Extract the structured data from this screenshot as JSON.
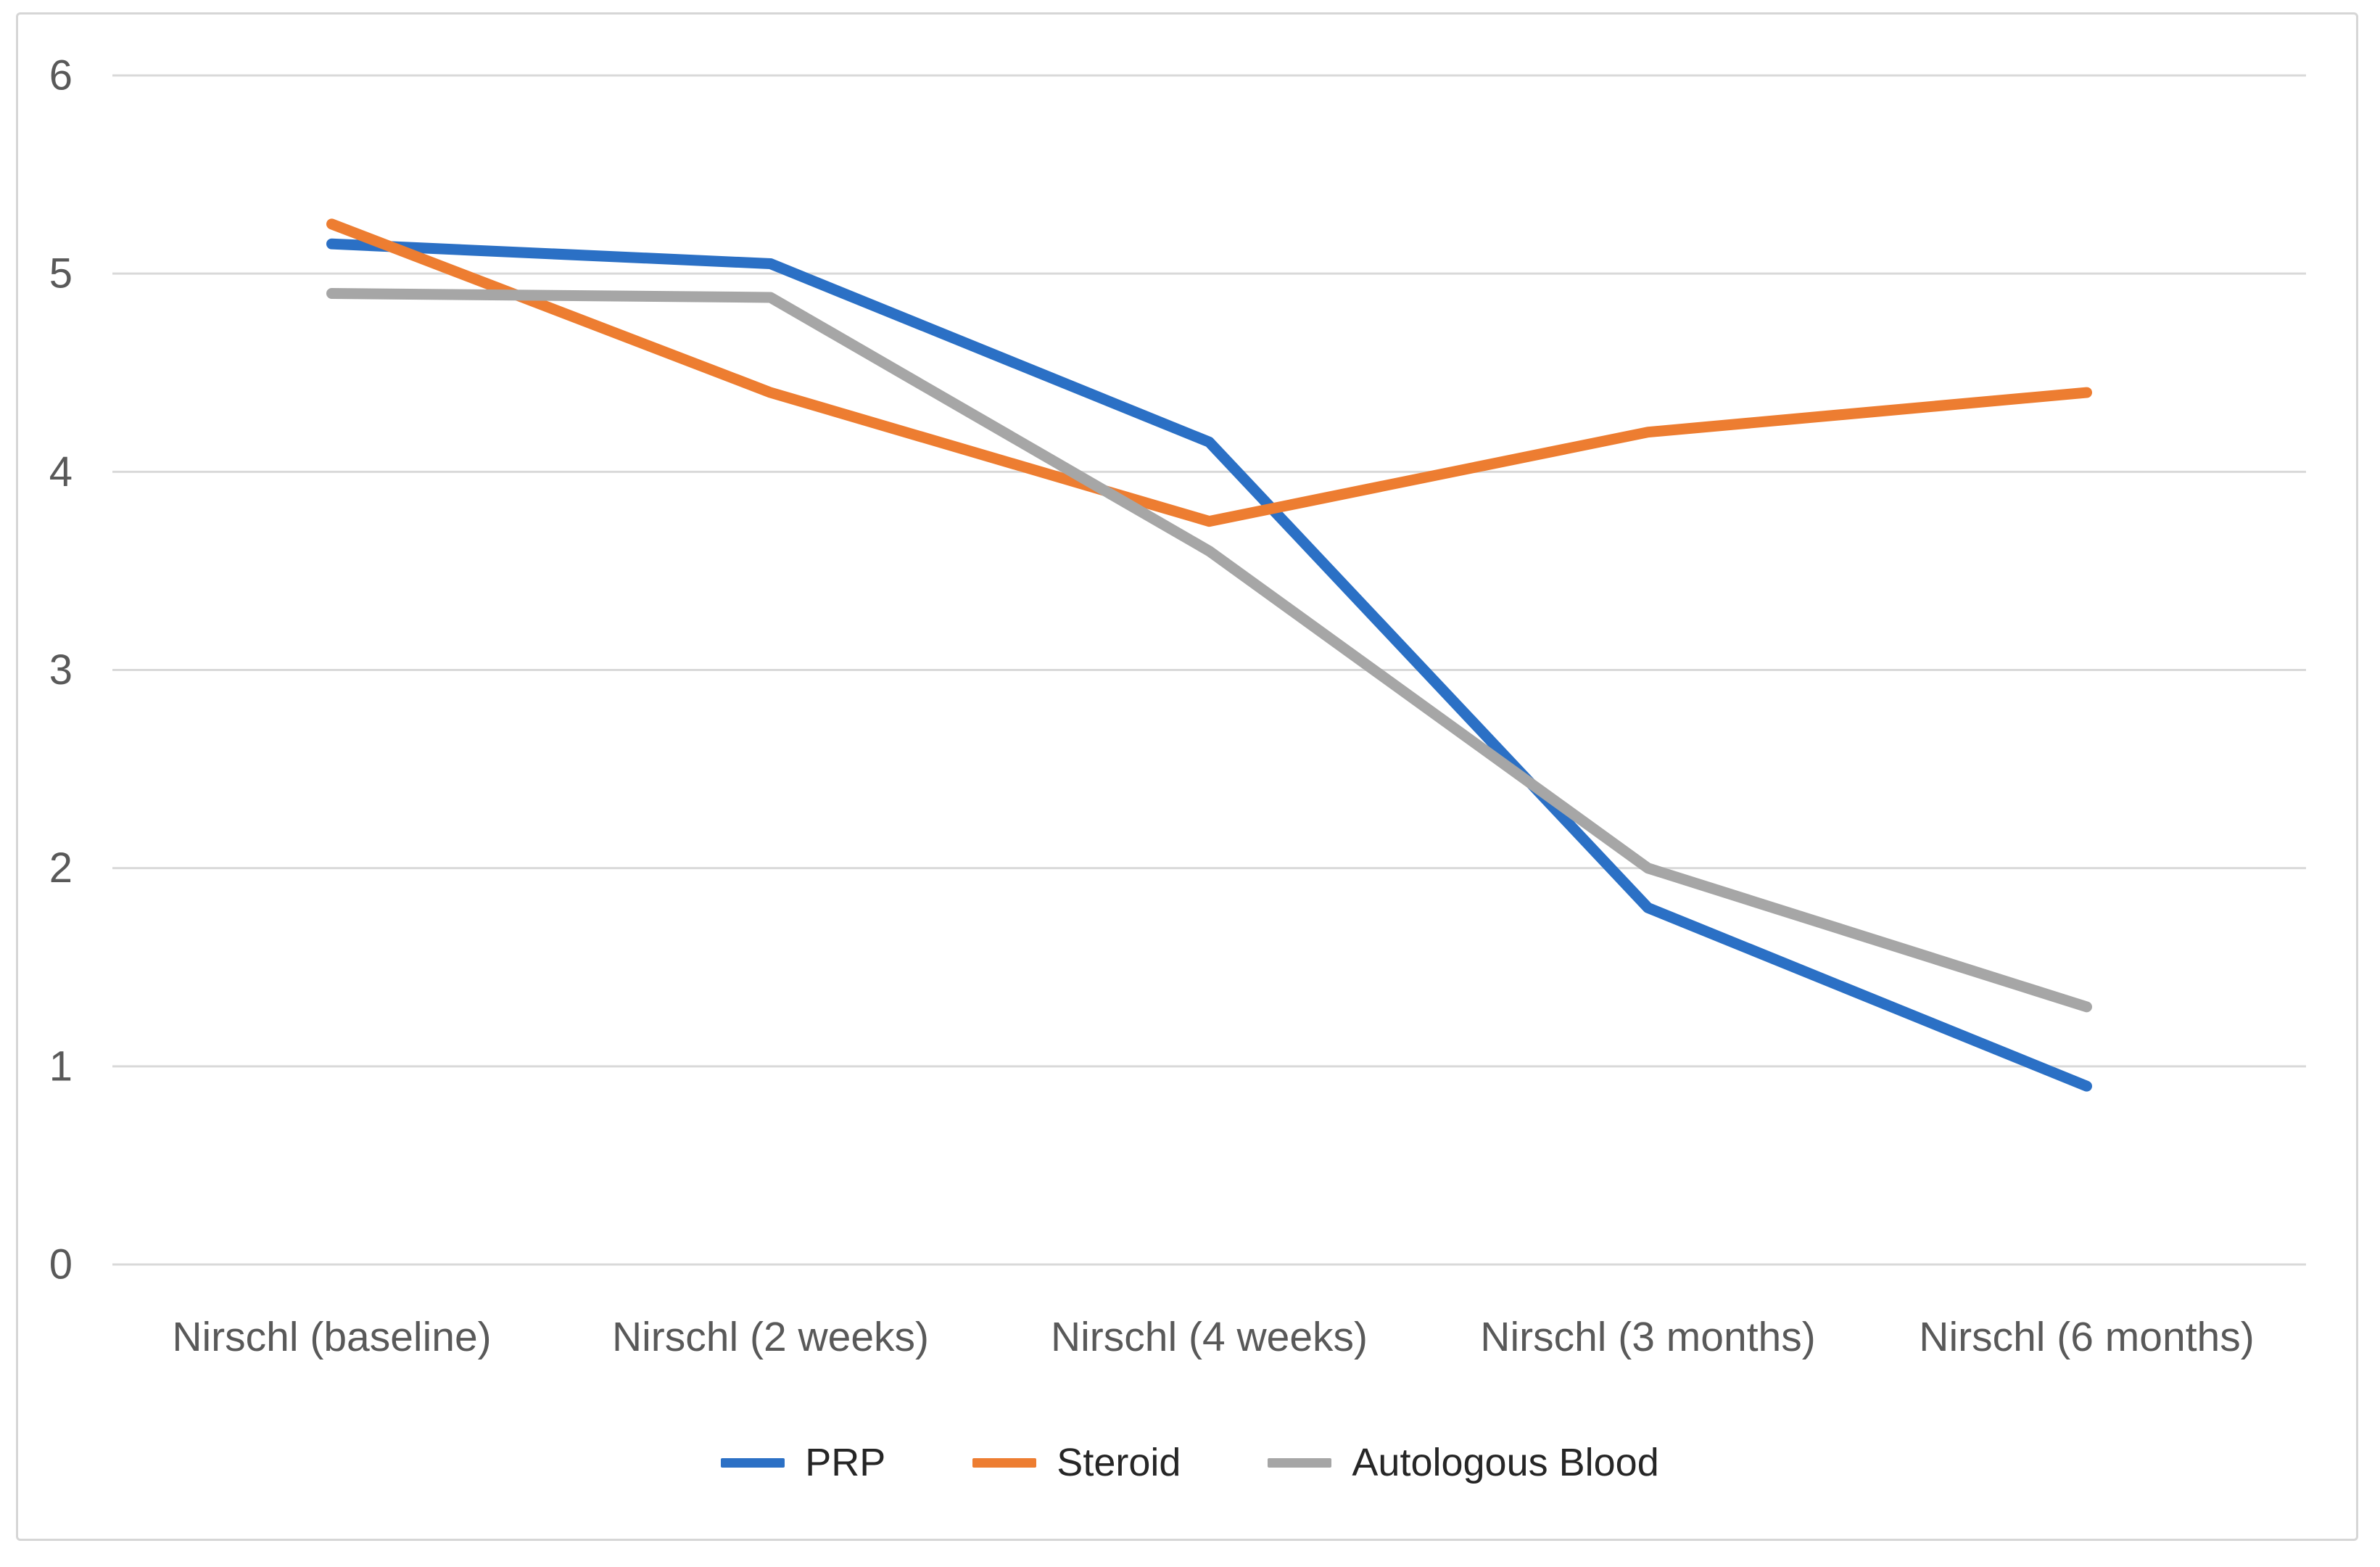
{
  "chart_data": {
    "type": "line",
    "title": "",
    "xlabel": "",
    "ylabel": "",
    "categories": [
      "Nirschl (baseline)",
      "Nirschl (2 weeks)",
      "Nirschl (4 weeks)",
      "Nirschl (3 months)",
      "Nirschl (6 months)"
    ],
    "series": [
      {
        "name": "PRP",
        "color": "#2B70C5",
        "values": [
          5.15,
          5.05,
          4.15,
          1.8,
          0.9
        ]
      },
      {
        "name": "Steroid",
        "color": "#ED7D31",
        "values": [
          5.25,
          4.4,
          3.75,
          4.2,
          4.4
        ]
      },
      {
        "name": "Autologous Blood",
        "color": "#A6A6A6",
        "values": [
          4.9,
          4.88,
          3.6,
          2.0,
          1.3
        ]
      }
    ],
    "ylim": [
      0,
      6
    ],
    "yticks": [
      0,
      1,
      2,
      3,
      4,
      5,
      6
    ],
    "grid": true,
    "legend_position": "bottom",
    "colors": {
      "gridline": "#d9d9d9",
      "axis_label": "#595959",
      "legend_text": "#262626",
      "chart_border": "#d6d6d6",
      "background": "#ffffff"
    }
  }
}
